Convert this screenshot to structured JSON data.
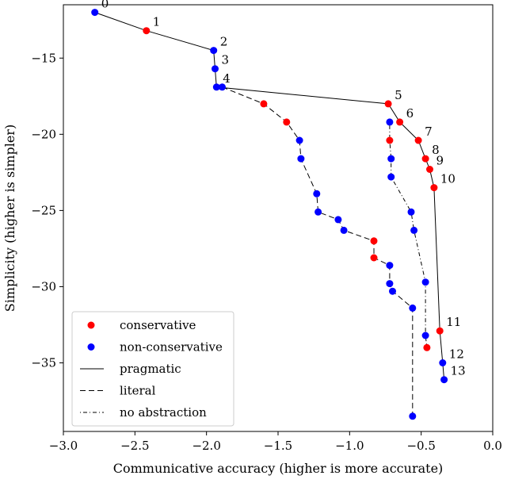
{
  "chart_data": {
    "type": "scatter",
    "xlabel": "Communicative accuracy (higher is more accurate)",
    "ylabel": "Simplicity (higher is simpler)",
    "xlim": [
      -3.0,
      0.0
    ],
    "ylim": [
      -39.5,
      -11.5
    ],
    "xticks": [
      -3.0,
      -2.5,
      -2.0,
      -1.5,
      -1.0,
      -0.5,
      0.0
    ],
    "xtick_labels": [
      "−3.0",
      "−2.5",
      "−2.0",
      "−1.5",
      "−1.0",
      "−0.5",
      "0.0"
    ],
    "yticks": [
      -15,
      -20,
      -25,
      -30,
      -35
    ],
    "ytick_labels": [
      "−15",
      "−20",
      "−25",
      "−30",
      "−35"
    ],
    "grid": false,
    "legend_position": "lower-left",
    "legend": [
      {
        "label": "conservative",
        "kind": "marker",
        "color": "#ff0000"
      },
      {
        "label": "non-conservative",
        "kind": "marker",
        "color": "#0000ff"
      },
      {
        "label": "pragmatic",
        "kind": "line",
        "dash": "solid"
      },
      {
        "label": "literal",
        "kind": "line",
        "dash": "dashed"
      },
      {
        "label": "no abstraction",
        "kind": "line",
        "dash": "dashdot"
      }
    ],
    "colors": {
      "conservative": "#ff0000",
      "non_conservative": "#0000ff",
      "line": "#000000"
    },
    "series": [
      {
        "style": "pragmatic",
        "dash": "solid",
        "points": [
          {
            "x": -2.78,
            "y": -12.0,
            "class": "non_conservative",
            "label": "0"
          },
          {
            "x": -2.42,
            "y": -13.2,
            "class": "conservative",
            "label": "1"
          },
          {
            "x": -1.95,
            "y": -14.5,
            "class": "non_conservative",
            "label": "2"
          },
          {
            "x": -1.94,
            "y": -15.7,
            "class": "non_conservative",
            "label": "3"
          },
          {
            "x": -1.93,
            "y": -16.9,
            "class": "non_conservative",
            "label": "4"
          },
          {
            "x": -0.73,
            "y": -18.0,
            "class": "conservative",
            "label": "5"
          },
          {
            "x": -0.65,
            "y": -19.2,
            "class": "conservative",
            "label": "6"
          },
          {
            "x": -0.52,
            "y": -20.4,
            "class": "conservative",
            "label": "7"
          },
          {
            "x": -0.47,
            "y": -21.6,
            "class": "conservative",
            "label": "8"
          },
          {
            "x": -0.44,
            "y": -22.3,
            "class": "conservative",
            "label": "9"
          },
          {
            "x": -0.41,
            "y": -23.5,
            "class": "conservative",
            "label": "10"
          },
          {
            "x": -0.37,
            "y": -32.9,
            "class": "conservative",
            "label": "11"
          },
          {
            "x": -0.35,
            "y": -35.0,
            "class": "non_conservative",
            "label": "12"
          },
          {
            "x": -0.34,
            "y": -36.1,
            "class": "non_conservative",
            "label": "13"
          }
        ]
      },
      {
        "style": "literal",
        "dash": "dashed",
        "points": [
          {
            "x": -1.89,
            "y": -16.9,
            "class": "non_conservative"
          },
          {
            "x": -1.6,
            "y": -18.0,
            "class": "conservative"
          },
          {
            "x": -1.44,
            "y": -19.2,
            "class": "conservative"
          },
          {
            "x": -1.35,
            "y": -20.4,
            "class": "non_conservative"
          },
          {
            "x": -1.34,
            "y": -21.6,
            "class": "non_conservative"
          },
          {
            "x": -1.23,
            "y": -23.9,
            "class": "non_conservative"
          },
          {
            "x": -1.22,
            "y": -25.1,
            "class": "non_conservative"
          },
          {
            "x": -1.08,
            "y": -25.6,
            "class": "non_conservative"
          },
          {
            "x": -1.04,
            "y": -26.3,
            "class": "non_conservative"
          },
          {
            "x": -0.83,
            "y": -27.0,
            "class": "conservative"
          },
          {
            "x": -0.83,
            "y": -28.1,
            "class": "conservative"
          },
          {
            "x": -0.72,
            "y": -28.6,
            "class": "non_conservative"
          },
          {
            "x": -0.72,
            "y": -29.8,
            "class": "non_conservative"
          },
          {
            "x": -0.7,
            "y": -30.3,
            "class": "non_conservative"
          },
          {
            "x": -0.56,
            "y": -31.4,
            "class": "non_conservative"
          },
          {
            "x": -0.56,
            "y": -38.5,
            "class": "non_conservative"
          }
        ]
      },
      {
        "style": "no abstraction",
        "dash": "dashdot",
        "points": [
          {
            "x": -0.72,
            "y": -19.2,
            "class": "non_conservative"
          },
          {
            "x": -0.72,
            "y": -20.4,
            "class": "conservative"
          },
          {
            "x": -0.71,
            "y": -21.6,
            "class": "non_conservative"
          },
          {
            "x": -0.71,
            "y": -22.8,
            "class": "non_conservative"
          },
          {
            "x": -0.57,
            "y": -25.1,
            "class": "non_conservative"
          },
          {
            "x": -0.55,
            "y": -26.3,
            "class": "non_conservative"
          },
          {
            "x": -0.47,
            "y": -29.7,
            "class": "non_conservative"
          },
          {
            "x": -0.47,
            "y": -33.2,
            "class": "non_conservative"
          },
          {
            "x": -0.46,
            "y": -34.0,
            "class": "conservative"
          }
        ]
      }
    ]
  }
}
